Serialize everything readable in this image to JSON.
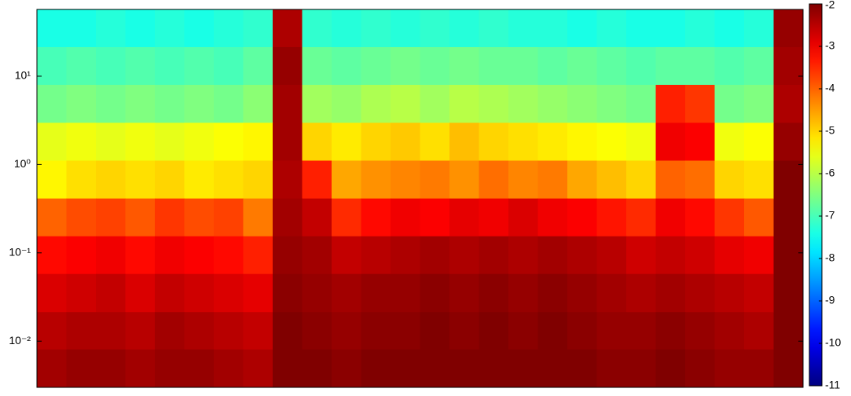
{
  "chart_data": {
    "type": "heatmap",
    "log_y": true,
    "y": [
      35,
      13,
      4.9,
      1.8,
      0.68,
      0.25,
      0.095,
      0.035,
      0.013,
      0.005
    ],
    "ylim": [
      0.003,
      57
    ],
    "yticks": [
      {
        "value": 10,
        "label": "10¹"
      },
      {
        "value": 1,
        "label": "10⁰"
      },
      {
        "value": 0.1,
        "label": "10⁻¹"
      },
      {
        "value": 0.01,
        "label": "10⁻²"
      }
    ],
    "clim": [
      -11,
      -2
    ],
    "cticks": [
      -2,
      -3,
      -4,
      -5,
      -6,
      -7,
      -8,
      -9,
      -10,
      -11
    ],
    "colormap": "jet",
    "z": [
      [
        -7.4,
        -7.4,
        -7.3,
        -7.4,
        -7.3,
        -7.4,
        -7.3,
        -7.2,
        -2.4,
        -7.2,
        -7.3,
        -7.2,
        -7.3,
        -7.2,
        -7.3,
        -7.2,
        -7.3,
        -7.3,
        -7.4,
        -7.3,
        -7.4,
        -7.4,
        -7.3,
        -7.4,
        -7.3,
        -2.2
      ],
      [
        -7.0,
        -6.9,
        -7.0,
        -6.9,
        -7.0,
        -6.9,
        -7.0,
        -6.8,
        -2.2,
        -6.7,
        -6.8,
        -6.7,
        -6.6,
        -6.7,
        -6.6,
        -6.7,
        -6.7,
        -6.8,
        -6.7,
        -6.8,
        -6.9,
        -6.8,
        -6.8,
        -6.9,
        -6.8,
        -2.3
      ],
      [
        -6.6,
        -6.5,
        -6.6,
        -6.5,
        -6.6,
        -6.5,
        -6.6,
        -6.4,
        -2.3,
        -6.2,
        -6.3,
        -6.1,
        -6.0,
        -6.2,
        -6.0,
        -6.1,
        -6.2,
        -6.3,
        -6.4,
        -6.5,
        -6.6,
        -3.4,
        -3.6,
        -6.6,
        -6.5,
        -2.4
      ],
      [
        -5.6,
        -5.5,
        -5.6,
        -5.5,
        -5.6,
        -5.5,
        -5.4,
        -5.3,
        -2.3,
        -5.0,
        -5.2,
        -5.0,
        -4.9,
        -5.1,
        -4.8,
        -5.0,
        -5.1,
        -5.2,
        -5.3,
        -5.4,
        -5.5,
        -3.0,
        -3.1,
        -5.5,
        -5.4,
        -2.2
      ],
      [
        -5.3,
        -5.1,
        -5.0,
        -5.1,
        -5.0,
        -5.2,
        -5.1,
        -5.0,
        -2.4,
        -3.4,
        -4.6,
        -4.4,
        -4.3,
        -4.2,
        -4.4,
        -4.1,
        -4.3,
        -4.2,
        -4.6,
        -4.8,
        -5.0,
        -4.0,
        -4.1,
        -5.0,
        -5.1,
        -2.0
      ],
      [
        -4.0,
        -3.8,
        -3.7,
        -3.9,
        -3.6,
        -3.8,
        -3.7,
        -4.2,
        -2.3,
        -2.6,
        -3.5,
        -3.2,
        -3.0,
        -3.1,
        -2.9,
        -3.0,
        -2.8,
        -3.0,
        -3.1,
        -3.3,
        -3.5,
        -3.0,
        -3.2,
        -3.6,
        -3.9,
        -2.0
      ],
      [
        -3.2,
        -3.1,
        -3.0,
        -3.2,
        -3.0,
        -3.1,
        -3.2,
        -3.4,
        -2.2,
        -2.3,
        -2.6,
        -2.5,
        -2.4,
        -2.3,
        -2.4,
        -2.3,
        -2.4,
        -2.3,
        -2.4,
        -2.5,
        -2.7,
        -2.6,
        -2.7,
        -2.9,
        -3.0,
        -2.0
      ],
      [
        -2.8,
        -2.7,
        -2.6,
        -2.8,
        -2.6,
        -2.7,
        -2.8,
        -2.9,
        -2.1,
        -2.2,
        -2.3,
        -2.2,
        -2.2,
        -2.1,
        -2.2,
        -2.1,
        -2.2,
        -2.1,
        -2.2,
        -2.3,
        -2.4,
        -2.3,
        -2.4,
        -2.5,
        -2.6,
        -2.0
      ],
      [
        -2.5,
        -2.4,
        -2.4,
        -2.5,
        -2.3,
        -2.4,
        -2.5,
        -2.6,
        -2.0,
        -2.1,
        -2.2,
        -2.1,
        -2.1,
        -2.0,
        -2.1,
        -2.0,
        -2.1,
        -2.0,
        -2.1,
        -2.2,
        -2.2,
        -2.1,
        -2.2,
        -2.3,
        -2.4,
        -2.0
      ],
      [
        -2.3,
        -2.2,
        -2.2,
        -2.3,
        -2.2,
        -2.2,
        -2.3,
        -2.4,
        -2.0,
        -2.0,
        -2.1,
        -2.0,
        -2.0,
        -2.0,
        -2.0,
        -2.0,
        -2.0,
        -2.0,
        -2.0,
        -2.1,
        -2.1,
        -2.0,
        -2.1,
        -2.2,
        -2.2,
        -2.0
      ]
    ]
  }
}
